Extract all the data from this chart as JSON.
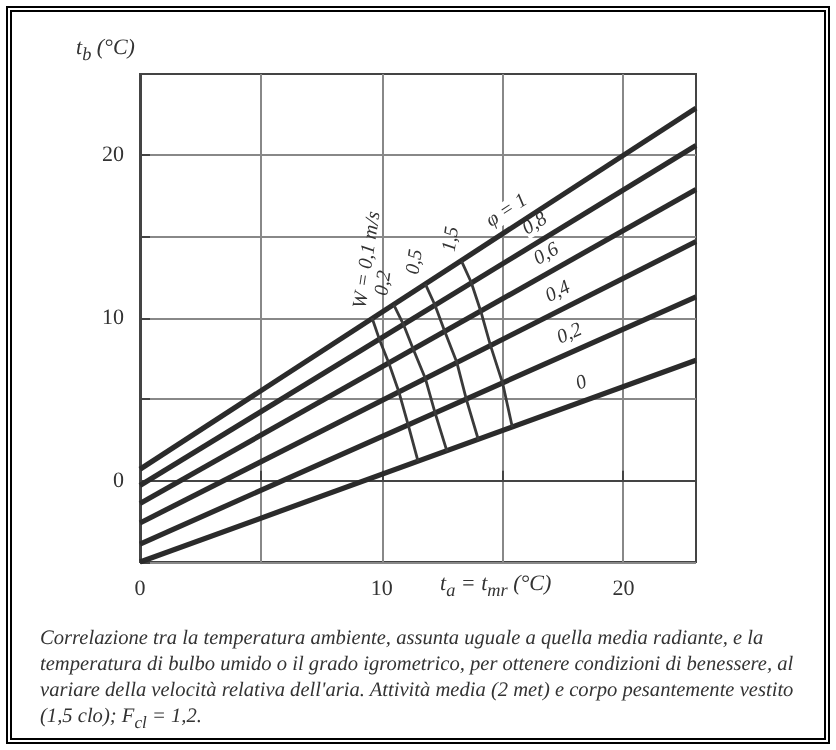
{
  "chart_data": {
    "type": "line",
    "xlabel": "t$_{a}$ = t$_{mr}$ (°C)",
    "ylabel": "t$_{b}$ (°C)",
    "xlim": [
      0,
      23
    ],
    "ylim": [
      -5,
      25
    ],
    "xticks": [
      0,
      {
        "value": 5,
        "label": null
      },
      10,
      {
        "value": 15,
        "label": null
      },
      20
    ],
    "yticks": [
      {
        "value": -5,
        "label": null
      },
      0,
      {
        "value": 5,
        "label": null
      },
      10,
      {
        "value": 15,
        "label": null
      },
      20
    ],
    "grid": true,
    "legend": false,
    "marker": "none",
    "annotations": [
      "Correlazione tra la temperatura ambiente, assunta uguale a quella media radiante, e la temperatura di bulbo umido o il grado igrometrico, per ottenere condizioni di benessere, al variare della velocità relativa dell'aria. Attività media (2 met) e corpo pesantemente vestito (1,5 clo); F$_{cl}$ = 1,2."
    ],
    "series": [
      {
        "name": "φ = 1",
        "color": "#2b2b2b",
        "x": [
          0,
          23
        ],
        "values": [
          0.7,
          22.9
        ]
      },
      {
        "name": "0,8",
        "color": "#2b2b2b",
        "x": [
          0,
          23
        ],
        "values": [
          -0.3,
          20.6
        ]
      },
      {
        "name": "0,6",
        "color": "#2b2b2b",
        "x": [
          0,
          23
        ],
        "values": [
          -1.4,
          17.9
        ]
      },
      {
        "name": "0,4",
        "color": "#2b2b2b",
        "x": [
          0,
          23
        ],
        "values": [
          -2.6,
          14.7
        ]
      },
      {
        "name": "0,2",
        "color": "#2b2b2b",
        "x": [
          0,
          23
        ],
        "values": [
          -3.9,
          11.3
        ]
      },
      {
        "name": "0",
        "color": "#2b2b2b",
        "x": [
          0,
          23
        ],
        "values": [
          -5,
          7.4
        ]
      },
      {
        "name": "W = 0,1 m/s",
        "color": "#3a3a3a",
        "x": [
          9.6,
          9.9,
          10.3,
          10.7,
          11.1,
          11.5
        ],
        "values": [
          10.0,
          8.7,
          7.2,
          5.5,
          3.4,
          1.2
        ]
      },
      {
        "name": "0,2",
        "color": "#3a3a3a",
        "x": [
          10.5,
          10.9,
          11.3,
          11.8,
          12.2,
          12.7
        ],
        "values": [
          10.8,
          9.6,
          8.1,
          6.3,
          4.2,
          1.8
        ]
      },
      {
        "name": "0,5",
        "color": "#3a3a3a",
        "x": [
          11.8,
          12.2,
          12.6,
          13.1,
          13.5,
          14.0
        ],
        "values": [
          12.1,
          10.8,
          9.2,
          7.3,
          5.0,
          2.5
        ]
      },
      {
        "name": "1,5",
        "color": "#3a3a3a",
        "x": [
          13.3,
          13.7,
          14.1,
          14.5,
          15.0,
          15.4
        ],
        "values": [
          13.5,
          12.2,
          10.4,
          8.3,
          6.0,
          3.3
        ]
      }
    ]
  }
}
